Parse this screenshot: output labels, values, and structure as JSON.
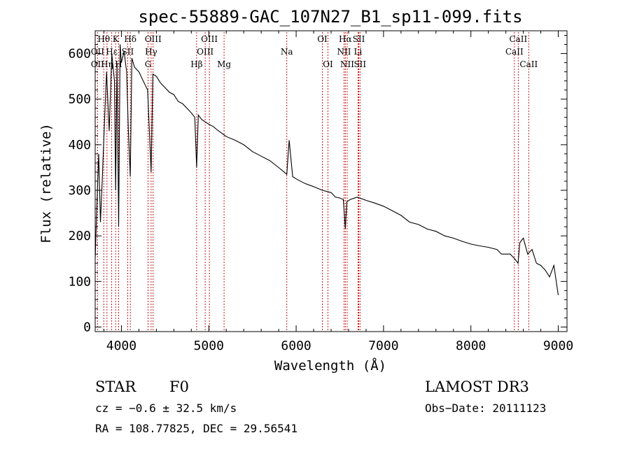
{
  "chart_data": {
    "type": "line",
    "title": "spec-55889-GAC_107N27_B1_sp11-099.fits",
    "xlabel": "Wavelength (Å)",
    "ylabel": "Flux (relative)",
    "xlim": [
      3700,
      9100
    ],
    "ylim": [
      -10,
      650
    ],
    "xticks": [
      4000,
      5000,
      6000,
      7000,
      8000,
      9000
    ],
    "xtick_labels": [
      "4000",
      "5000",
      "6000",
      "7000",
      "8000",
      "9000"
    ],
    "yticks": [
      0,
      100,
      200,
      300,
      400,
      500,
      600
    ],
    "ytick_labels": [
      "0",
      "100",
      "200",
      "300",
      "400",
      "500",
      "600"
    ],
    "spectrum": {
      "name": "flux",
      "x": [
        3700,
        3720,
        3740,
        3760,
        3780,
        3800,
        3830,
        3860,
        3890,
        3920,
        3934,
        3950,
        3968,
        3985,
        4000,
        4030,
        4060,
        4080,
        4101,
        4120,
        4150,
        4200,
        4250,
        4300,
        4340,
        4360,
        4400,
        4450,
        4500,
        4550,
        4600,
        4650,
        4700,
        4750,
        4800,
        4840,
        4861,
        4880,
        4920,
        4960,
        5000,
        5050,
        5100,
        5150,
        5200,
        5300,
        5400,
        5500,
        5600,
        5700,
        5800,
        5850,
        5893,
        5920,
        5960,
        6000,
        6100,
        6200,
        6300,
        6400,
        6450,
        6500,
        6540,
        6563,
        6580,
        6620,
        6700,
        6800,
        6900,
        7000,
        7100,
        7200,
        7300,
        7400,
        7500,
        7600,
        7700,
        7800,
        7900,
        8000,
        8100,
        8200,
        8300,
        8350,
        8400,
        8450,
        8500,
        8540,
        8560,
        8600,
        8650,
        8700,
        8750,
        8800,
        8850,
        8900,
        8950,
        9000
      ],
      "values": [
        150,
        270,
        380,
        230,
        320,
        420,
        560,
        430,
        600,
        540,
        300,
        580,
        220,
        620,
        580,
        605,
        560,
        430,
        330,
        590,
        570,
        560,
        540,
        520,
        340,
        555,
        550,
        535,
        525,
        515,
        510,
        495,
        490,
        480,
        470,
        460,
        350,
        465,
        455,
        450,
        445,
        440,
        432,
        425,
        418,
        410,
        400,
        385,
        375,
        365,
        350,
        342,
        335,
        410,
        330,
        325,
        315,
        308,
        300,
        295,
        285,
        283,
        280,
        215,
        275,
        280,
        285,
        278,
        272,
        265,
        255,
        245,
        230,
        225,
        215,
        210,
        200,
        195,
        188,
        182,
        178,
        175,
        170,
        160,
        160,
        160,
        150,
        140,
        185,
        195,
        160,
        170,
        140,
        135,
        125,
        110,
        135,
        70
      ]
    },
    "line_markers": [
      {
        "label": "Hθ",
        "wavelength": 3798,
        "row": 0
      },
      {
        "label": "OII",
        "wavelength": 3727,
        "row": 1
      },
      {
        "label": "OII",
        "wavelength": 3727,
        "row": 2
      },
      {
        "label": "Hη",
        "wavelength": 3835,
        "row": 2
      },
      {
        "label": "Hε",
        "wavelength": 3889,
        "row": 1
      },
      {
        "label": "K",
        "wavelength": 3934,
        "row": 0
      },
      {
        "label": "H",
        "wavelength": 3968,
        "row": 2
      },
      {
        "label": "SII",
        "wavelength": 4072,
        "row": 1
      },
      {
        "label": "Hδ",
        "wavelength": 4102,
        "row": 0
      },
      {
        "label": "OIII",
        "wavelength": 4363,
        "row": 0
      },
      {
        "label": "Hγ",
        "wavelength": 4340,
        "row": 1
      },
      {
        "label": "G",
        "wavelength": 4305,
        "row": 2
      },
      {
        "label": "Hβ",
        "wavelength": 4861,
        "row": 2
      },
      {
        "label": "OIII",
        "wavelength": 4959,
        "row": 1
      },
      {
        "label": "OIII",
        "wavelength": 5007,
        "row": 0
      },
      {
        "label": "Mg",
        "wavelength": 5175,
        "row": 2
      },
      {
        "label": "Na",
        "wavelength": 5893,
        "row": 1
      },
      {
        "label": "OI",
        "wavelength": 6300,
        "row": 0
      },
      {
        "label": "OI",
        "wavelength": 6364,
        "row": 2
      },
      {
        "label": "Hα",
        "wavelength": 6563,
        "row": 0
      },
      {
        "label": "NII",
        "wavelength": 6548,
        "row": 1
      },
      {
        "label": "NII",
        "wavelength": 6584,
        "row": 2
      },
      {
        "label": "SII",
        "wavelength": 6717,
        "row": 0
      },
      {
        "label": "Li",
        "wavelength": 6708,
        "row": 1
      },
      {
        "label": "SII",
        "wavelength": 6731,
        "row": 2
      },
      {
        "label": "CaII",
        "wavelength": 8542,
        "row": 0
      },
      {
        "label": "CaII",
        "wavelength": 8498,
        "row": 1
      },
      {
        "label": "CaII",
        "wavelength": 8662,
        "row": 2
      }
    ]
  },
  "info": {
    "object_class": "STAR",
    "subclass": "F0",
    "survey": "LAMOST DR3",
    "redshift": "cz = −0.6 ± 32.5 km/s",
    "obs_date": "Obs−Date: 20111123",
    "coords": "RA = 108.77825, DEC =  29.56541"
  },
  "colors": {
    "spectrum": "#000000",
    "marker_lines": "#c00000",
    "axes": "#000000",
    "background": "#ffffff"
  }
}
